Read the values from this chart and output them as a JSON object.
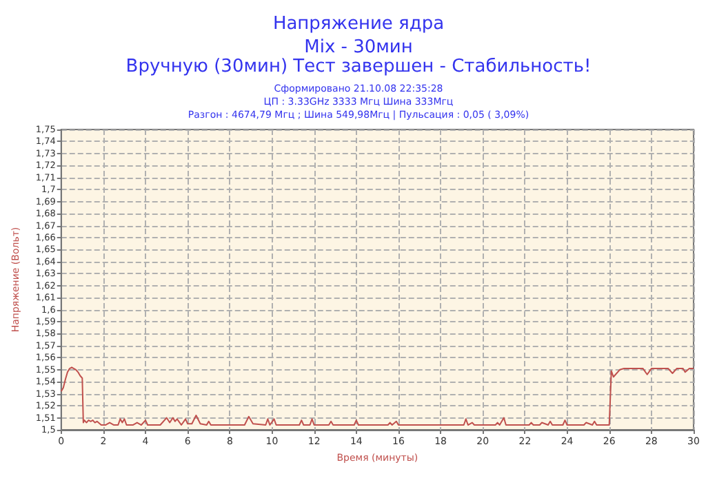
{
  "chart_data": {
    "type": "line",
    "title": "Напряжение ядра",
    "subtitle": "Mix - 30мин",
    "annotations": [
      "Вручную (30мин) Тест завершен - Стабильность!",
      "Сформировано 21.10.08 22:35:28",
      "ЦП : 3.33GHz 3333 Мгц Шина 333Мгц",
      "Разгон : 4674,79 Мгц ; Шина 549,98Мгц | Пульсация : 0,05 ( 3,09%)"
    ],
    "xlabel": "Время (минуты)",
    "ylabel": "Напряжение (Вольт)",
    "series": [
      {
        "color": "#c0504d",
        "x": [
          0,
          0.1,
          0.2,
          0.3,
          0.4,
          0.5,
          0.6,
          0.7,
          0.8,
          0.9,
          1.0,
          1.05,
          1.1,
          1.2,
          1.3,
          1.4,
          1.5,
          1.6,
          1.7,
          1.9,
          2.1,
          2.3,
          2.5,
          2.7,
          2.8,
          2.9,
          3.0,
          3.1,
          3.4,
          3.6,
          3.8,
          4.0,
          4.1,
          4.7,
          5.0,
          5.15,
          5.3,
          5.4,
          5.5,
          5.7,
          5.9,
          6.0,
          6.2,
          6.4,
          6.6,
          6.9,
          7.0,
          7.1,
          8.7,
          8.9,
          9.1,
          9.7,
          9.8,
          9.9,
          10.1,
          10.2,
          11.3,
          11.4,
          11.5,
          11.8,
          11.9,
          12.0,
          12.7,
          12.8,
          12.9,
          13.9,
          14.0,
          14.1,
          15.5,
          15.6,
          15.7,
          15.9,
          16.0,
          19.1,
          19.2,
          19.3,
          19.5,
          19.6,
          20.6,
          20.7,
          20.8,
          21.0,
          21.1,
          22.2,
          22.3,
          22.4,
          22.7,
          22.8,
          23.1,
          23.2,
          23.3,
          23.8,
          23.9,
          24.0,
          24.8,
          24.9,
          25.2,
          25.3,
          25.4,
          25.95,
          26.0,
          26.1,
          26.2,
          26.3,
          26.5,
          26.7,
          27.6,
          27.8,
          28.0,
          28.8,
          29.0,
          29.2,
          29.5,
          29.6,
          29.8,
          30
        ],
        "values": [
          1.532,
          1.535,
          1.542,
          1.548,
          1.551,
          1.552,
          1.551,
          1.55,
          1.548,
          1.545,
          1.543,
          1.506,
          1.508,
          1.506,
          1.508,
          1.507,
          1.508,
          1.506,
          1.507,
          1.504,
          1.504,
          1.506,
          1.504,
          1.504,
          1.509,
          1.506,
          1.509,
          1.504,
          1.504,
          1.506,
          1.504,
          1.508,
          1.504,
          1.504,
          1.51,
          1.506,
          1.51,
          1.507,
          1.509,
          1.504,
          1.509,
          1.505,
          1.505,
          1.512,
          1.505,
          1.504,
          1.507,
          1.504,
          1.504,
          1.511,
          1.505,
          1.504,
          1.509,
          1.504,
          1.509,
          1.504,
          1.504,
          1.508,
          1.504,
          1.504,
          1.509,
          1.504,
          1.504,
          1.507,
          1.504,
          1.504,
          1.508,
          1.504,
          1.504,
          1.506,
          1.504,
          1.507,
          1.504,
          1.504,
          1.509,
          1.504,
          1.506,
          1.504,
          1.504,
          1.506,
          1.504,
          1.51,
          1.504,
          1.504,
          1.506,
          1.504,
          1.504,
          1.506,
          1.504,
          1.507,
          1.504,
          1.504,
          1.508,
          1.504,
          1.504,
          1.506,
          1.504,
          1.507,
          1.504,
          1.504,
          1.504,
          1.549,
          1.544,
          1.546,
          1.55,
          1.551,
          1.551,
          1.546,
          1.551,
          1.551,
          1.547,
          1.551,
          1.551,
          1.548,
          1.551,
          1.551
        ]
      }
    ],
    "xlim": [
      0,
      30
    ],
    "xticks": [
      0,
      2,
      4,
      6,
      8,
      10,
      12,
      14,
      16,
      18,
      20,
      22,
      24,
      26,
      28,
      30
    ],
    "ylim": [
      1.5,
      1.75
    ],
    "yticks": [
      {
        "value": 1.5,
        "label": "1,5"
      },
      {
        "value": 1.51,
        "label": "1,51"
      },
      {
        "value": 1.52,
        "label": "1,52"
      },
      {
        "value": 1.53,
        "label": "1,53"
      },
      {
        "value": 1.54,
        "label": "1,54"
      },
      {
        "value": 1.55,
        "label": "1,55"
      },
      {
        "value": 1.56,
        "label": "1,56"
      },
      {
        "value": 1.57,
        "label": "1,57"
      },
      {
        "value": 1.58,
        "label": "1,58"
      },
      {
        "value": 1.59,
        "label": "1,59"
      },
      {
        "value": 1.6,
        "label": "1,6"
      },
      {
        "value": 1.61,
        "label": "1,61"
      },
      {
        "value": 1.62,
        "label": "1,62"
      },
      {
        "value": 1.63,
        "label": "1,63"
      },
      {
        "value": 1.64,
        "label": "1,64"
      },
      {
        "value": 1.65,
        "label": "1,65"
      },
      {
        "value": 1.66,
        "label": "1,66"
      },
      {
        "value": 1.67,
        "label": "1,67"
      },
      {
        "value": 1.68,
        "label": "1,68"
      },
      {
        "value": 1.69,
        "label": "1,69"
      },
      {
        "value": 1.7,
        "label": "1,7"
      },
      {
        "value": 1.71,
        "label": "1,71"
      },
      {
        "value": 1.72,
        "label": "1,72"
      },
      {
        "value": 1.73,
        "label": "1,73"
      },
      {
        "value": 1.74,
        "label": "1,74"
      },
      {
        "value": 1.75,
        "label": "1,75"
      }
    ],
    "grid": true,
    "marker": "none",
    "line_style": "solid"
  }
}
